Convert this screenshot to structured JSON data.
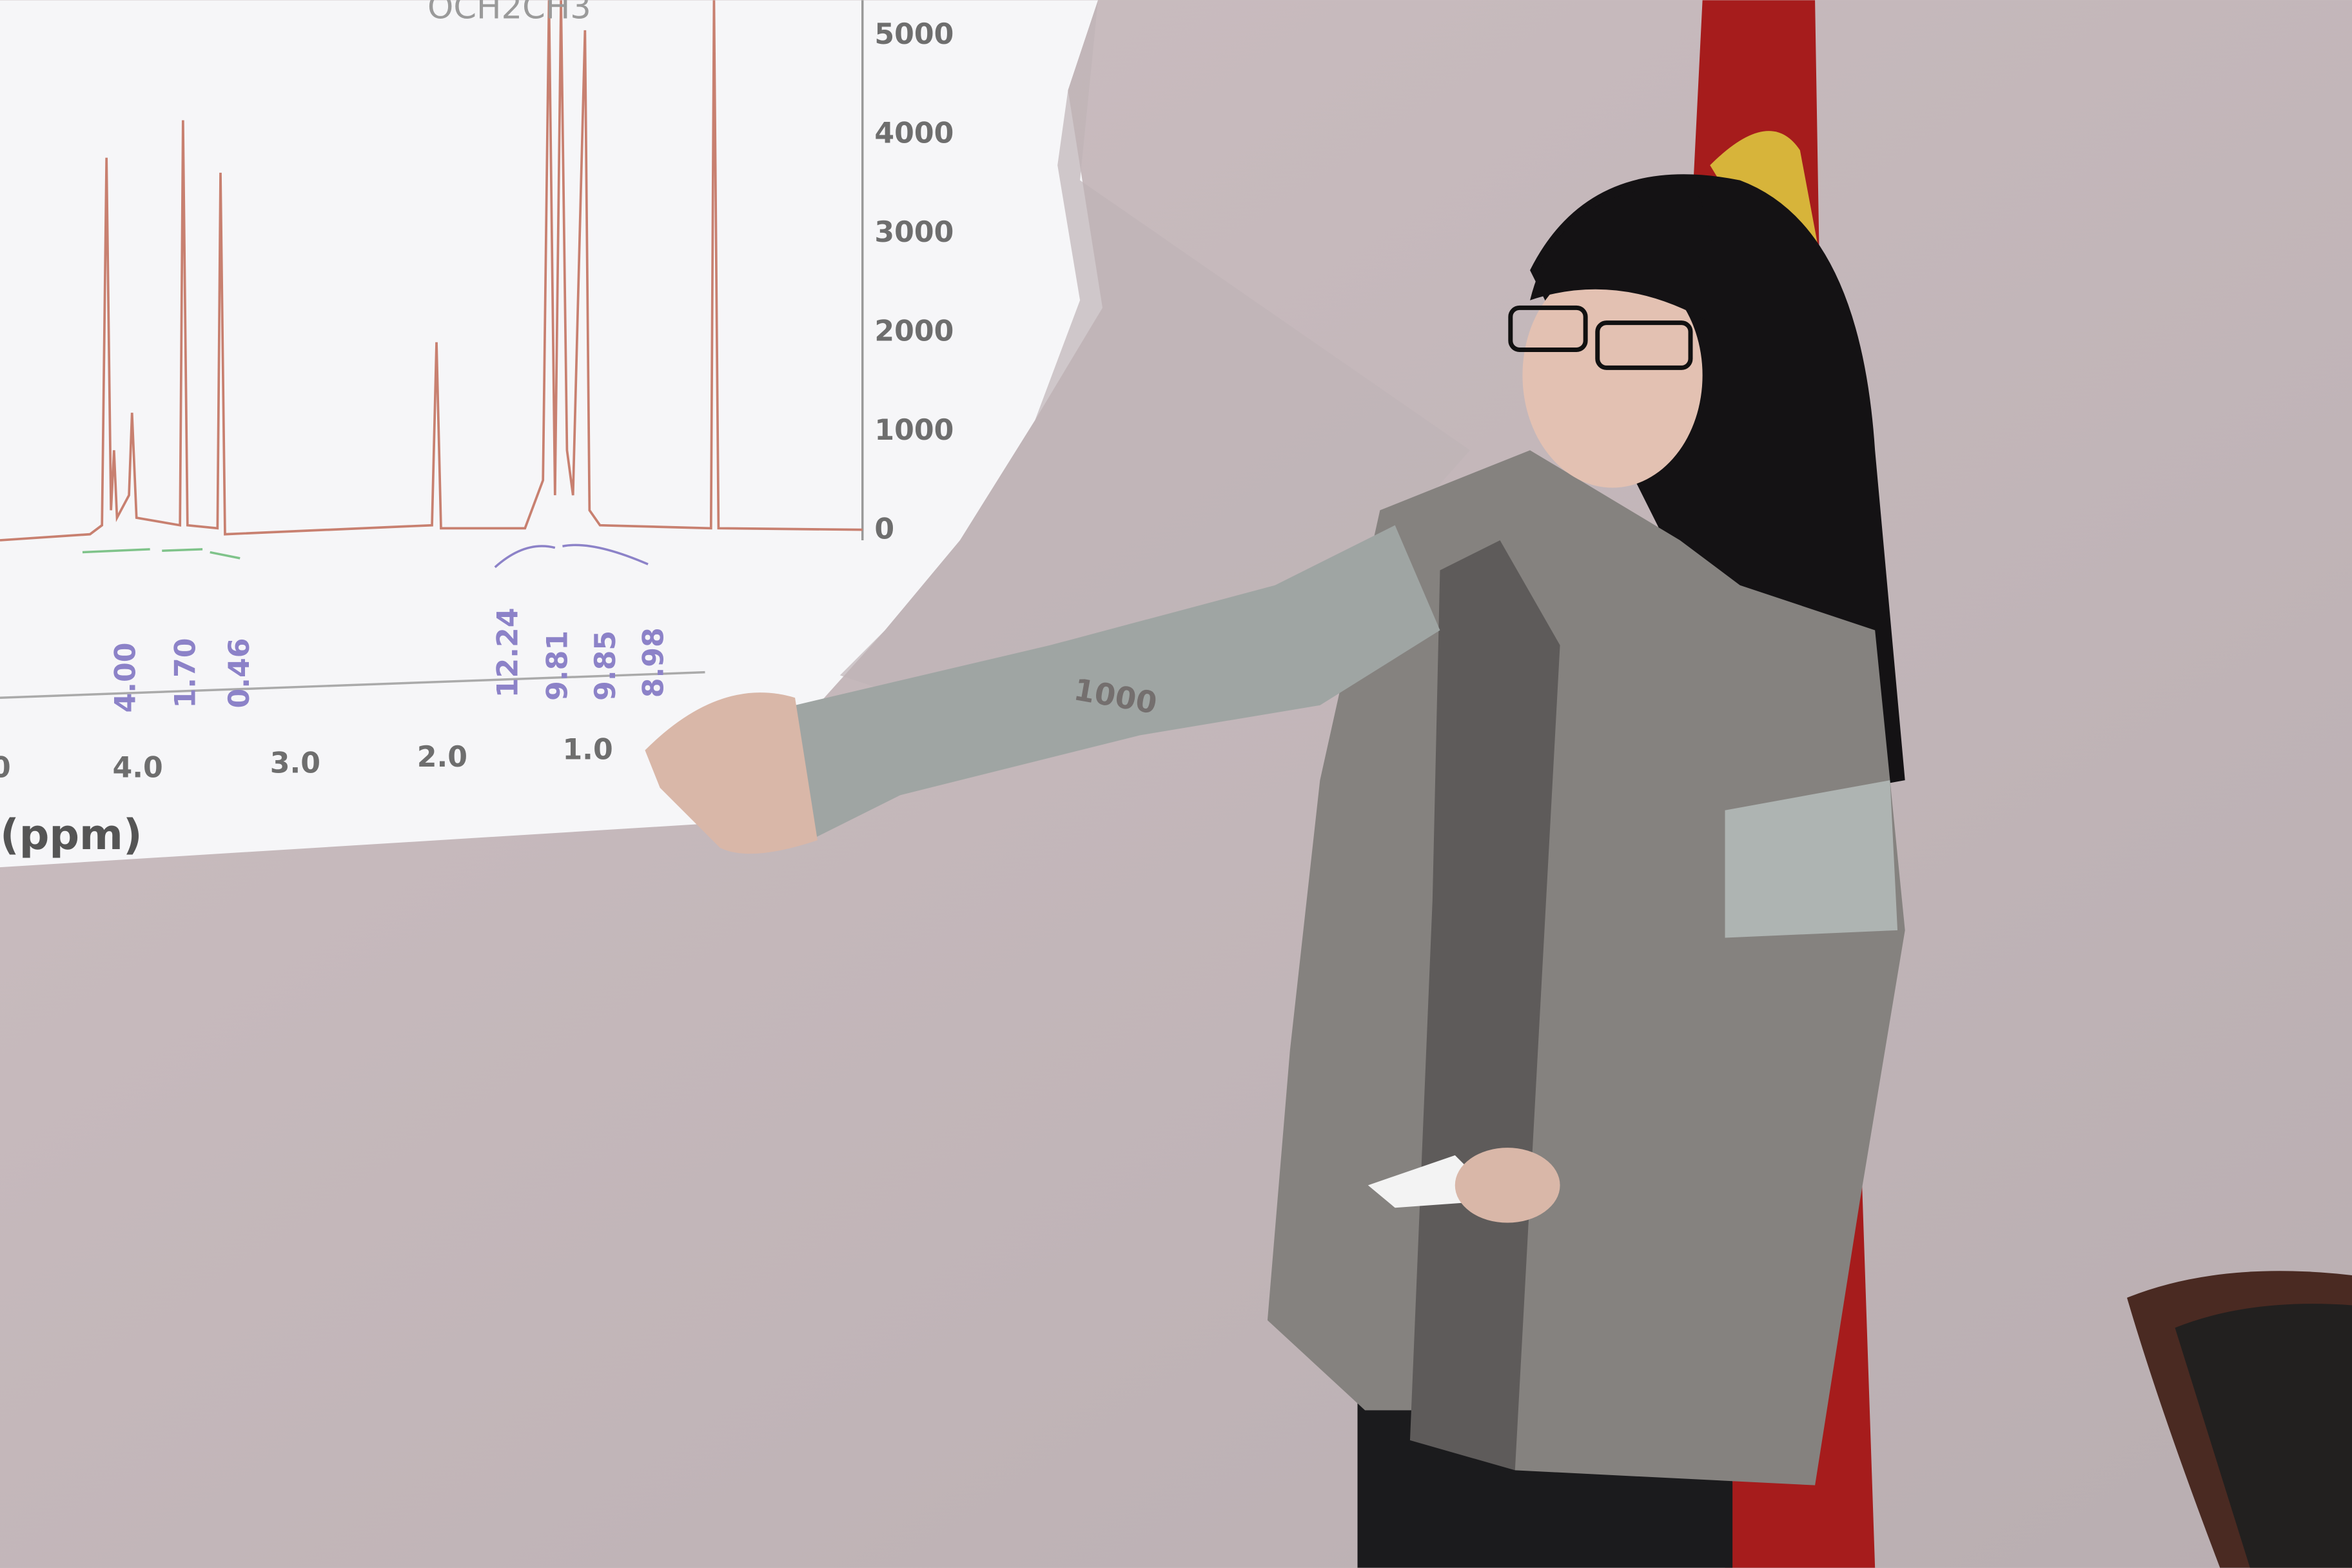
{
  "slide": {
    "formula": "OCH2CH3",
    "y_ticks": [
      "5000",
      "4000",
      "3000",
      "2000",
      "1000",
      "0"
    ],
    "x_ticks": [
      "0",
      "4.0",
      "3.0",
      "2.0",
      "1.0"
    ],
    "x_label": "(ppm)",
    "integrals": [
      "4.00",
      "1.70",
      "0.46",
      "12.24",
      "9.81",
      "9.85",
      "8.98"
    ]
  },
  "shadow_text": "1000"
}
